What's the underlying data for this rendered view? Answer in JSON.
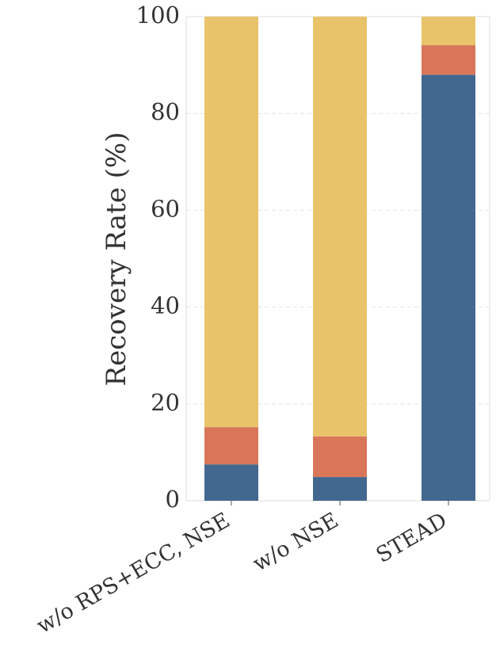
{
  "chart_data": {
    "type": "stacked_bar",
    "y_label": "Recovery Rate (%)",
    "categories": [
      "w/o RPS+ECC, NSE",
      "w/o NSE",
      "STEAD"
    ],
    "series": [
      {
        "color": "#436890",
        "values": [
          7.5,
          4.9,
          88.0
        ]
      },
      {
        "color": "#d9765a",
        "values": [
          7.7,
          8.4,
          6.1
        ]
      },
      {
        "color": "#e8c36a",
        "values": [
          84.8,
          86.7,
          5.9
        ]
      }
    ],
    "ylim": [
      0,
      100
    ],
    "yticks": [
      0,
      20,
      40,
      60,
      80,
      100
    ],
    "grid": true
  }
}
